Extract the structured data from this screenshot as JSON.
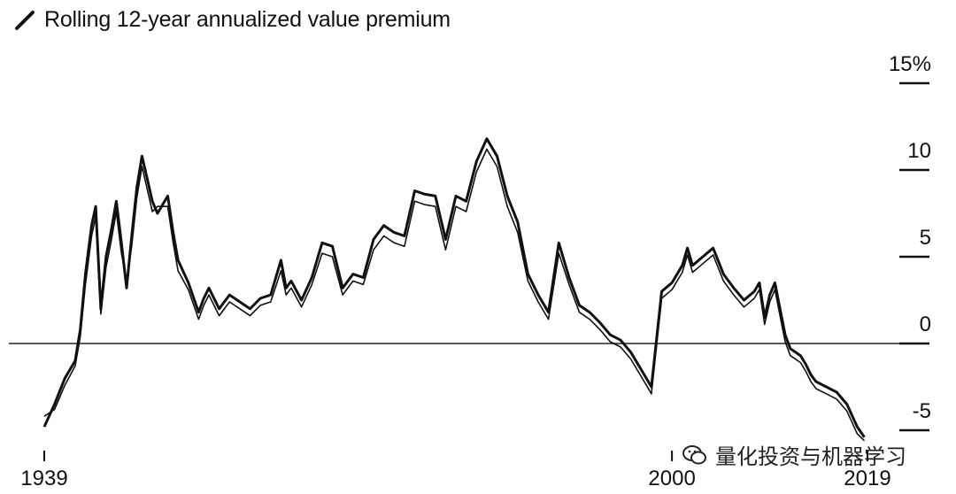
{
  "header": {
    "title": "Rolling 12-year annualized value premium",
    "icon": "slash-icon"
  },
  "watermark": {
    "text": "量化投资与机器学习",
    "icon": "wechat-icon"
  },
  "chart_data": {
    "type": "line",
    "title": "Rolling 12-year annualized value premium",
    "xlim": [
      1939,
      2019
    ],
    "ylim": [
      -5,
      15
    ],
    "y_ticks": [
      {
        "value": 15,
        "label": "15%"
      },
      {
        "value": 10,
        "label": "10"
      },
      {
        "value": 5,
        "label": "5"
      },
      {
        "value": 0,
        "label": "0"
      },
      {
        "value": -5,
        "label": "-5"
      }
    ],
    "x_ticks": [
      {
        "value": 1939,
        "label": "1939"
      },
      {
        "value": 2000,
        "label": "2000"
      },
      {
        "value": 2019,
        "label": "2019"
      }
    ],
    "grid": false,
    "series": [
      {
        "name": "",
        "color": "#111111",
        "x": [
          1939.0,
          1940.0,
          1941.0,
          1942.0,
          1942.5,
          1943.0,
          1943.6,
          1944.0,
          1944.5,
          1945.0,
          1945.5,
          1946.0,
          1946.5,
          1947.0,
          1947.5,
          1948.0,
          1948.5,
          1949.0,
          1949.5,
          1950.0,
          1951.0,
          1951.5,
          1952.0,
          1953.0,
          1954.0,
          1954.5,
          1955.0,
          1956.0,
          1957.0,
          1958.0,
          1959.0,
          1960.0,
          1961.0,
          1962.0,
          1962.5,
          1963.0,
          1964.0,
          1965.0,
          1966.0,
          1967.0,
          1968.0,
          1969.0,
          1970.0,
          1971.0,
          1972.0,
          1973.0,
          1974.0,
          1975.0,
          1976.0,
          1977.0,
          1978.0,
          1979.0,
          1980.0,
          1981.0,
          1982.0,
          1983.0,
          1984.0,
          1985.0,
          1986.0,
          1987.0,
          1988.0,
          1989.0,
          1990.0,
          1991.0,
          1992.0,
          1993.0,
          1994.0,
          1995.0,
          1996.0,
          1997.0,
          1998.0,
          1999.0,
          2000.0,
          2001.0,
          2001.5,
          2002.0,
          2003.0,
          2004.0,
          2005.0,
          2006.0,
          2007.0,
          2008.0,
          2008.5,
          2009.0,
          2009.5,
          2010.0,
          2011.0,
          2011.5,
          2012.0,
          2012.5,
          2013.0,
          2013.5,
          2014.0,
          2015.0,
          2016.0,
          2017.0,
          2018.0,
          2018.7
        ],
        "y": [
          -4.8,
          -3.5,
          -2.0,
          -1.0,
          0.8,
          4.0,
          6.8,
          7.9,
          2.0,
          5.0,
          6.5,
          8.2,
          5.8,
          3.2,
          6.2,
          9.0,
          10.8,
          9.5,
          8.2,
          7.5,
          8.5,
          6.5,
          4.8,
          3.5,
          1.8,
          2.6,
          3.2,
          2.0,
          2.8,
          2.4,
          2.0,
          2.6,
          2.8,
          4.8,
          3.2,
          3.6,
          2.5,
          3.8,
          5.8,
          5.6,
          3.2,
          4.0,
          3.8,
          6.0,
          6.8,
          6.4,
          6.2,
          8.8,
          8.6,
          8.5,
          6.0,
          8.5,
          8.2,
          10.5,
          11.8,
          10.8,
          8.5,
          7.0,
          4.0,
          2.8,
          1.8,
          5.8,
          3.8,
          2.2,
          1.8,
          1.2,
          0.5,
          0.2,
          -0.5,
          -1.5,
          -2.5,
          3.0,
          3.5,
          4.5,
          5.5,
          4.5,
          5.0,
          5.5,
          4.0,
          3.2,
          2.5,
          3.0,
          3.5,
          1.5,
          2.8,
          3.5,
          0.5,
          -0.3,
          -0.5,
          -0.7,
          -1.2,
          -1.8,
          -2.2,
          -2.5,
          -2.8,
          -3.5,
          -4.8,
          -5.4
        ]
      },
      {
        "name": "",
        "color": "#111111",
        "x": [
          1939.0,
          1940.0,
          1941.0,
          1942.0,
          1942.5,
          1943.0,
          1943.6,
          1944.0,
          1944.5,
          1945.0,
          1945.5,
          1946.0,
          1946.5,
          1947.0,
          1947.5,
          1948.0,
          1948.5,
          1949.0,
          1949.5,
          1950.0,
          1951.0,
          1951.5,
          1952.0,
          1953.0,
          1954.0,
          1954.5,
          1955.0,
          1956.0,
          1957.0,
          1958.0,
          1959.0,
          1960.0,
          1961.0,
          1962.0,
          1962.5,
          1963.0,
          1964.0,
          1965.0,
          1966.0,
          1967.0,
          1968.0,
          1969.0,
          1970.0,
          1971.0,
          1972.0,
          1973.0,
          1974.0,
          1975.0,
          1976.0,
          1977.0,
          1978.0,
          1979.0,
          1980.0,
          1981.0,
          1982.0,
          1983.0,
          1984.0,
          1985.0,
          1986.0,
          1987.0,
          1988.0,
          1989.0,
          1990.0,
          1991.0,
          1992.0,
          1993.0,
          1994.0,
          1995.0,
          1996.0,
          1997.0,
          1998.0,
          1999.0,
          2000.0,
          2001.0,
          2001.5,
          2002.0,
          2003.0,
          2004.0,
          2005.0,
          2006.0,
          2007.0,
          2008.0,
          2008.5,
          2009.0,
          2009.5,
          2010.0,
          2011.0,
          2011.5,
          2012.0,
          2012.5,
          2013.0,
          2013.5,
          2014.0,
          2015.0,
          2016.0,
          2017.0,
          2018.0,
          2018.7
        ],
        "y": [
          -4.2,
          -3.8,
          -2.4,
          -1.3,
          0.4,
          3.4,
          6.2,
          7.3,
          1.7,
          4.4,
          5.9,
          7.6,
          5.2,
          3.6,
          5.6,
          8.4,
          10.2,
          8.9,
          7.6,
          7.9,
          7.9,
          5.9,
          4.2,
          3.1,
          1.4,
          2.2,
          2.8,
          1.6,
          2.4,
          2.0,
          1.6,
          2.2,
          2.4,
          4.2,
          2.8,
          3.2,
          2.1,
          3.4,
          5.2,
          5.0,
          2.8,
          3.6,
          3.4,
          5.4,
          6.2,
          5.8,
          5.6,
          8.2,
          8.0,
          7.9,
          5.4,
          7.9,
          7.6,
          9.9,
          11.2,
          10.2,
          7.9,
          6.4,
          3.6,
          2.4,
          1.4,
          5.2,
          3.4,
          1.8,
          1.4,
          0.8,
          0.1,
          -0.2,
          -0.9,
          -1.9,
          -2.9,
          2.6,
          3.1,
          4.1,
          5.1,
          4.1,
          4.6,
          5.1,
          3.6,
          2.8,
          2.1,
          2.6,
          3.1,
          1.1,
          2.4,
          3.1,
          0.1,
          -0.7,
          -0.9,
          -1.1,
          -1.6,
          -2.2,
          -2.6,
          -2.9,
          -3.2,
          -3.9,
          -5.2,
          -5.6
        ]
      }
    ]
  }
}
